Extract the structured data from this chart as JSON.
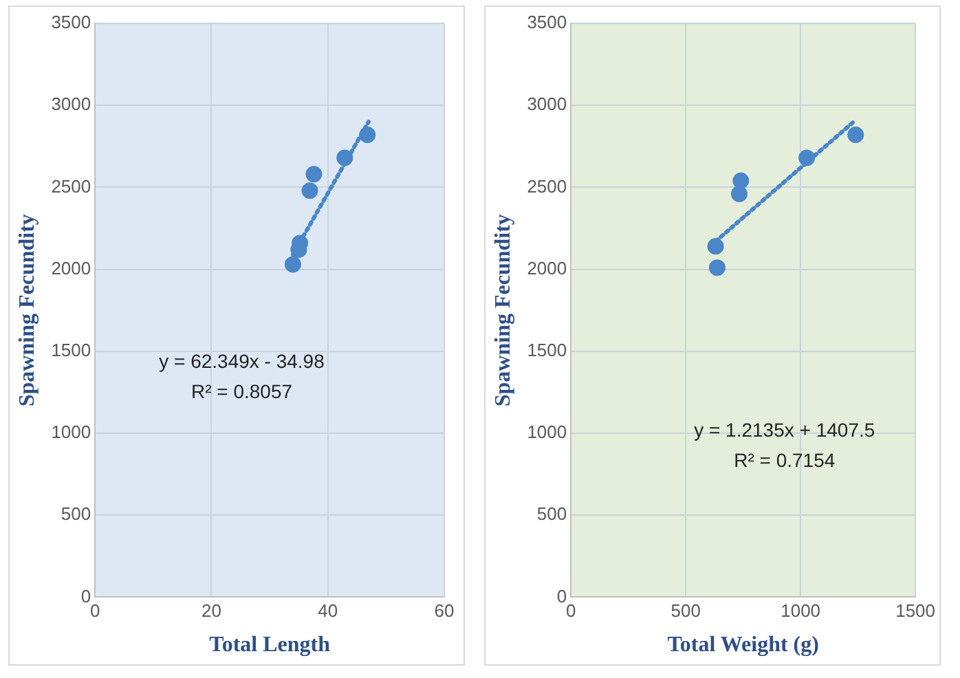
{
  "chart_data": [
    {
      "type": "scatter",
      "xlabel": "Total Length",
      "ylabel": "Spawning Fecundity",
      "xlim": [
        0,
        60
      ],
      "xticks": [
        0,
        20,
        40,
        60
      ],
      "ylim": [
        0,
        3500
      ],
      "yticks": [
        0,
        500,
        1000,
        1500,
        2000,
        2500,
        3000,
        3500
      ],
      "grid": true,
      "legend": false,
      "marker": "circle",
      "annotations": [
        "y = 62.349x - 34.98",
        "R² = 0.8057"
      ],
      "series": [
        {
          "color": "#4a86c8",
          "x": [
            34,
            35.2,
            35,
            36.9,
            37.6,
            42.9,
            46.8
          ],
          "values": [
            2030,
            2160,
            2120,
            2480,
            2580,
            2680,
            2820
          ]
        },
        {
          "type": "line",
          "color": "#4a86c8",
          "line_style": "dotted",
          "marker": "none",
          "x": [
            34,
            47
          ],
          "values": [
            2090,
            2900
          ]
        }
      ]
    },
    {
      "type": "scatter",
      "xlabel": "Total Weight (g)",
      "ylabel": "Spawning Fecundity",
      "xlim": [
        0,
        1500
      ],
      "xticks": [
        0,
        500,
        1000,
        1500
      ],
      "ylim": [
        0,
        3500
      ],
      "yticks": [
        0,
        500,
        1000,
        1500,
        2000,
        2500,
        3000,
        3500
      ],
      "grid": true,
      "legend": false,
      "marker": "circle",
      "annotations": [
        "y = 1.2135x + 1407.5",
        "R² = 0.7154"
      ],
      "series": [
        {
          "color": "#4a86c8",
          "x": [
            637,
            630,
            740,
            733,
            1027,
            1240
          ],
          "values": [
            2010,
            2140,
            2540,
            2460,
            2680,
            2820
          ]
        },
        {
          "type": "line",
          "color": "#4a86c8",
          "line_style": "dotted",
          "marker": "none",
          "x": [
            630,
            1240
          ],
          "values": [
            2170,
            2910
          ]
        }
      ]
    }
  ]
}
